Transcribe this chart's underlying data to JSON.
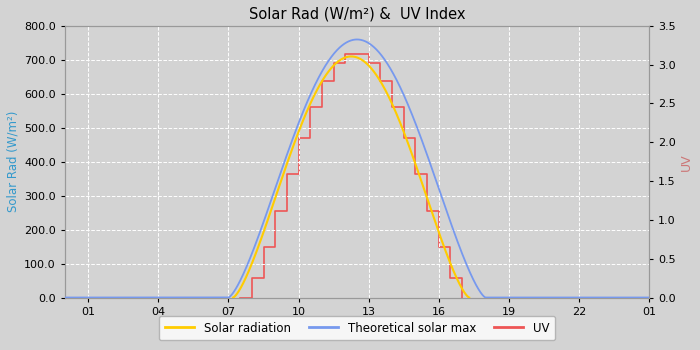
{
  "title": "Solar Rad (W/m²) &  UV Index",
  "ylabel_left": "Solar Rad (W/m²)",
  "ylabel_right": "UV",
  "ylabel_left_color": "#3399cc",
  "ylabel_right_color": "#cc7777",
  "background_color": "#d3d3d3",
  "plot_background_color": "#d3d3d3",
  "grid_color": "#ffffff",
  "xtick_labels": [
    "01",
    "04",
    "07",
    "10",
    "13",
    "16",
    "19",
    "22",
    "01"
  ],
  "xtick_positions": [
    1,
    4,
    7,
    10,
    13,
    16,
    19,
    22,
    25
  ],
  "ylim_left": [
    0,
    800
  ],
  "ylim_right": [
    0,
    3.5
  ],
  "ytick_left": [
    0.0,
    100.0,
    200.0,
    300.0,
    400.0,
    500.0,
    600.0,
    700.0,
    800.0
  ],
  "ytick_right": [
    0.0,
    0.5,
    1.0,
    1.5,
    2.0,
    2.5,
    3.0,
    3.5
  ],
  "solar_color": "#ffcc00",
  "theoretical_color": "#7799ee",
  "uv_color": "#ee5555",
  "legend_solar": "Solar radiation",
  "legend_theoretical": "Theoretical solar max",
  "legend_uv": "UV",
  "peak_hour": 12.5,
  "solar_peak": 710,
  "theoretical_peak": 760,
  "uv_peak": 3.15,
  "sunrise": 7.0,
  "sunset": 18.0,
  "solar_start": 7.2,
  "solar_end": 17.3,
  "uv_start": 7.5,
  "uv_end": 17.0,
  "uv_step": 0.5
}
